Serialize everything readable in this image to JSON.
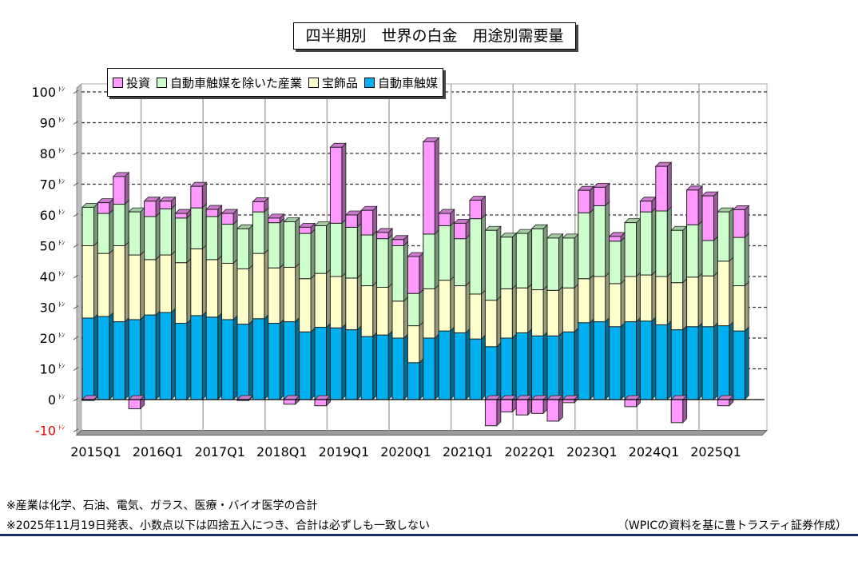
{
  "chart_data": {
    "type": "bar",
    "stacked": true,
    "title": "四半期別　世界の白金　用途別需要量",
    "ylabel": "",
    "unit": "ﾄﾝ",
    "ylim": [
      -10,
      100
    ],
    "yticks": [
      "100",
      "90",
      "80",
      "70",
      "60",
      "50",
      "40",
      "30",
      "20",
      "10",
      "0",
      "-10"
    ],
    "xtick_labels": [
      "2015Q1",
      "2016Q1",
      "2017Q1",
      "2018Q1",
      "2019Q1",
      "2020Q1",
      "2021Q1",
      "2022Q1",
      "2023Q1",
      "2024Q1",
      "2025Q1"
    ],
    "grid": true,
    "legend_position": "top-left",
    "categories": [
      "2015Q1",
      "2015Q2",
      "2015Q3",
      "2015Q4",
      "2016Q1",
      "2016Q2",
      "2016Q3",
      "2016Q4",
      "2017Q1",
      "2017Q2",
      "2017Q3",
      "2017Q4",
      "2018Q1",
      "2018Q2",
      "2018Q3",
      "2018Q4",
      "2019Q1",
      "2019Q2",
      "2019Q3",
      "2019Q4",
      "2020Q1",
      "2020Q2",
      "2020Q3",
      "2020Q4",
      "2021Q1",
      "2021Q2",
      "2021Q3",
      "2021Q4",
      "2022Q1",
      "2022Q2",
      "2022Q3",
      "2022Q4",
      "2023Q1",
      "2023Q2",
      "2023Q3",
      "2023Q4",
      "2024Q1",
      "2024Q2",
      "2024Q3",
      "2024Q4",
      "2025Q1",
      "2025Q2",
      "2025Q3"
    ],
    "series": [
      {
        "name": "自動車触媒",
        "color": "#00b0f0",
        "values": [
          26.5,
          27,
          25.3,
          26,
          27.5,
          28.3,
          24.8,
          27.3,
          26.8,
          26,
          24.5,
          26.3,
          24.8,
          25.3,
          22,
          23.5,
          23.3,
          22.7,
          20.5,
          21,
          20,
          12,
          20,
          22.3,
          21.7,
          19.7,
          17.2,
          20,
          21.7,
          20.7,
          20.7,
          22,
          25,
          25.3,
          23.7,
          25.3,
          25.5,
          24.3,
          22.7,
          23.7,
          23.7,
          24,
          22.3
        ]
      },
      {
        "name": "宝飾品",
        "color": "#ffffcc",
        "values": [
          23.5,
          20.5,
          24.7,
          21,
          18,
          18.7,
          19.7,
          21.7,
          18.7,
          18.3,
          18,
          21.2,
          18,
          17.7,
          17.3,
          17.5,
          16.7,
          16.8,
          16.5,
          15.5,
          12,
          12,
          16,
          16.5,
          15.3,
          14.6,
          15.1,
          16,
          14.6,
          15,
          14.8,
          14.3,
          14.3,
          14.7,
          14,
          14.7,
          15,
          15.7,
          15.3,
          16.1,
          16.5,
          21,
          14.7
        ]
      },
      {
        "name": "自動車触媒を除いた産業",
        "color": "#ccffcc",
        "values": [
          12.5,
          13,
          13.5,
          14,
          14,
          15,
          14.5,
          13.3,
          14,
          12.7,
          13,
          13.5,
          14.7,
          14.8,
          14.7,
          15.5,
          17.3,
          16.5,
          16.5,
          15.8,
          18,
          10.5,
          17.8,
          17.7,
          15.3,
          24.5,
          22.7,
          16.8,
          17.7,
          19.8,
          17,
          16.2,
          21.4,
          23,
          13.8,
          17.5,
          20.5,
          21.3,
          17,
          17,
          11.5,
          16,
          15.7
        ]
      },
      {
        "name": "投資",
        "color": "#ff99ff",
        "values": [
          -0.3,
          3.5,
          9,
          -3,
          5,
          2.5,
          1.5,
          7,
          2.3,
          3.5,
          -0.3,
          3.3,
          1.5,
          -1.5,
          2,
          -2,
          24.7,
          4,
          8,
          2,
          2,
          12,
          30,
          4,
          5,
          6,
          -8.5,
          -4,
          -5,
          -4.5,
          -7,
          -1,
          7.3,
          6,
          1.5,
          -2.3,
          3.5,
          14.5,
          -7.5,
          11.3,
          14.5,
          -2,
          9
        ]
      }
    ],
    "legend_order": [
      "投資",
      "自動車触媒を除いた産業",
      "宝飾品",
      "自動車触媒"
    ]
  },
  "notes": [
    "※産業は化学、石油、電気、ガラス、医療・バイオ医学の合計",
    "※2025年11月19日発表、小数点以下は四捨五入につき、合計は必ずしも一致しない"
  ],
  "source": "（WPICの資料を基に豊トラスティ証券作成）"
}
